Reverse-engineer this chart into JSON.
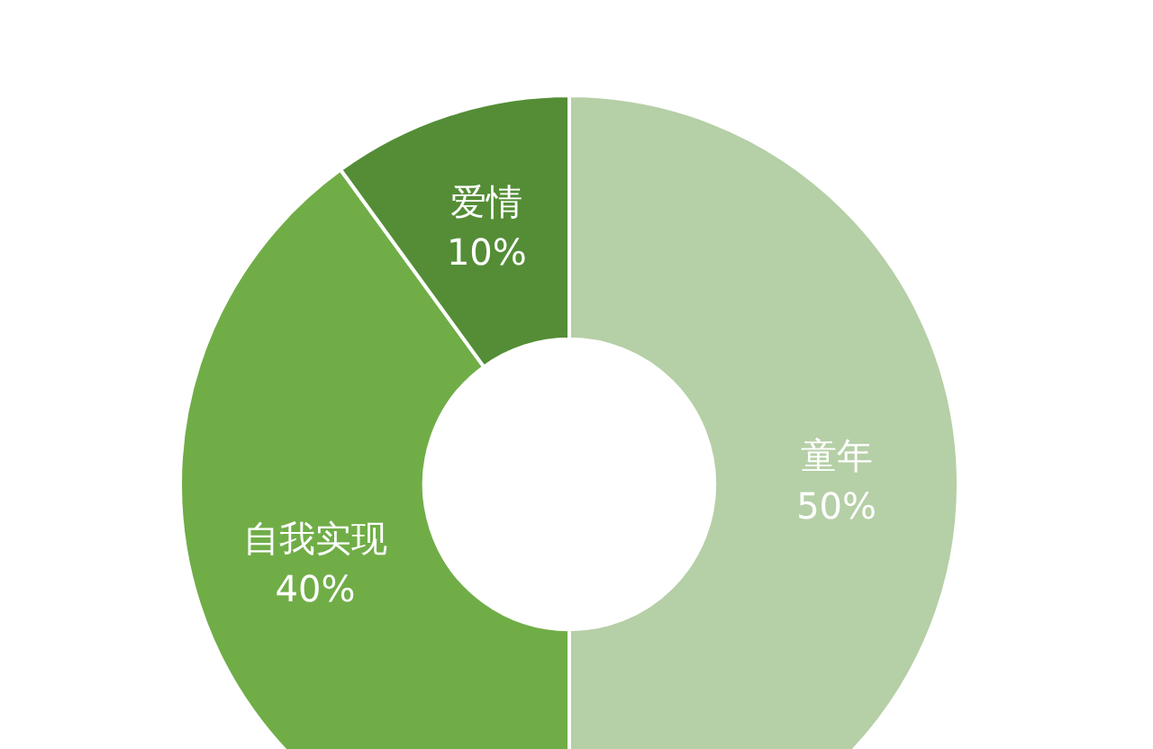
{
  "chart_data": {
    "type": "donut",
    "categories": [
      "童年",
      "自我实现",
      "爱情"
    ],
    "values": [
      50,
      40,
      10
    ],
    "colors": [
      "#b5cfa6",
      "#70ad47",
      "#548d36"
    ],
    "value_labels": [
      "50%",
      "40%",
      "10%"
    ],
    "legend": false
  }
}
